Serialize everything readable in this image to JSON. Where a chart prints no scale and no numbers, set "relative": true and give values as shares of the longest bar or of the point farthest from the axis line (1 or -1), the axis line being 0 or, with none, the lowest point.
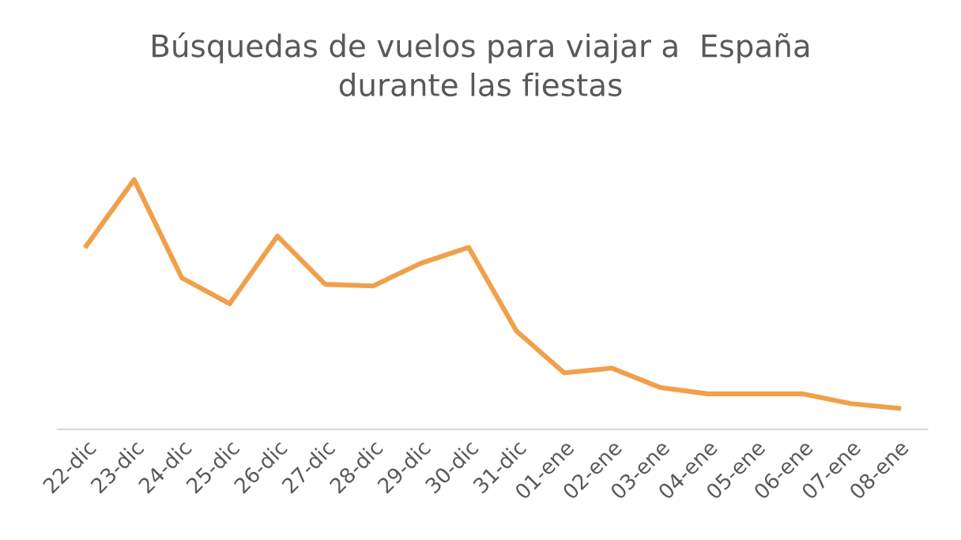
{
  "chart_data": {
    "type": "line",
    "relative": true,
    "title": "Búsquedas de vuelos para viajar a  España\ndurante las fiestas",
    "categories": [
      "22-dic",
      "23-dic",
      "24-dic",
      "25-dic",
      "26-dic",
      "27-dic",
      "28-dic",
      "29-dic",
      "30-dic",
      "31-dic",
      "01-ene",
      "02-ene",
      "03-ene",
      "04-ene",
      "05-ene",
      "06-ene",
      "07-ene",
      "08-ene"
    ],
    "series": [
      {
        "color": "#f0a04b",
        "values": [
          0.735,
          1,
          0.606,
          0.503,
          0.774,
          0.581,
          0.574,
          0.665,
          0.729,
          0.394,
          0.226,
          0.245,
          0.168,
          0.142,
          0.142,
          0.142,
          0.103,
          0.084
        ]
      }
    ],
    "legend": false,
    "marker": "none",
    "line_style": "solid"
  }
}
